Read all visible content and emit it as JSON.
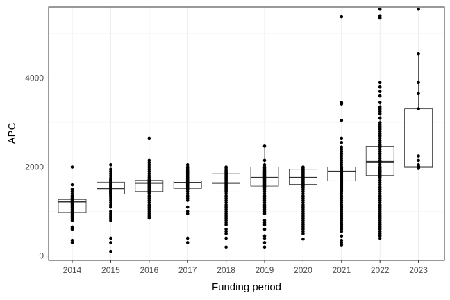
{
  "chart_data": {
    "type": "boxplot",
    "xlabel": "Funding period",
    "ylabel": "APC",
    "ylim": [
      -100,
      5600
    ],
    "yticks": [
      0,
      2000,
      4000
    ],
    "ytick_labels": [
      "0",
      "2000",
      "4000"
    ],
    "grid": true,
    "theme": "bw",
    "categories": [
      "2014",
      "2015",
      "2016",
      "2017",
      "2018",
      "2019",
      "2020",
      "2021",
      "2022",
      "2023"
    ],
    "boxes": [
      {
        "q1": 980,
        "median": 1220,
        "q3": 1270,
        "whisker_low": 980,
        "whisker_high": 1300
      },
      {
        "q1": 1390,
        "median": 1520,
        "q3": 1660,
        "whisker_low": 1100,
        "whisker_high": 1950
      },
      {
        "q1": 1450,
        "median": 1640,
        "q3": 1700,
        "whisker_low": 1200,
        "whisker_high": 1950
      },
      {
        "q1": 1520,
        "median": 1650,
        "q3": 1690,
        "whisker_low": 1280,
        "whisker_high": 1950
      },
      {
        "q1": 1440,
        "median": 1640,
        "q3": 1850,
        "whisker_low": 850,
        "whisker_high": 2000
      },
      {
        "q1": 1570,
        "median": 1760,
        "q3": 2000,
        "whisker_low": 950,
        "whisker_high": 2470
      },
      {
        "q1": 1610,
        "median": 1760,
        "q3": 1950,
        "whisker_low": 1100,
        "whisker_high": 2000
      },
      {
        "q1": 1690,
        "median": 1900,
        "q3": 2000,
        "whisker_low": 1100,
        "whisker_high": 2400
      },
      {
        "q1": 1810,
        "median": 2120,
        "q3": 2470,
        "whisker_low": 850,
        "whisker_high": 3450
      },
      {
        "q1": 1990,
        "median": 2000,
        "q3": 3310,
        "whisker_low": 1970,
        "whisker_high": 4550
      }
    ],
    "points": [
      [
        2000,
        1600,
        1500,
        1450,
        1400,
        1350,
        1300,
        1280,
        1250,
        1230,
        1220,
        1210,
        1200,
        1180,
        1150,
        1100,
        1050,
        1000,
        950,
        900,
        850,
        800,
        650,
        600,
        350,
        300
      ],
      [
        2050,
        1950,
        1900,
        1850,
        1800,
        1750,
        1720,
        1700,
        1680,
        1650,
        1620,
        1600,
        1580,
        1560,
        1540,
        1520,
        1500,
        1480,
        1460,
        1440,
        1420,
        1400,
        1380,
        1350,
        1300,
        1250,
        1200,
        1150,
        1100,
        1000,
        950,
        900,
        850,
        800,
        400,
        300,
        100
      ],
      [
        2650,
        2150,
        2100,
        2050,
        2000,
        1950,
        1900,
        1850,
        1800,
        1760,
        1720,
        1700,
        1680,
        1660,
        1640,
        1620,
        1600,
        1580,
        1560,
        1540,
        1520,
        1500,
        1480,
        1460,
        1440,
        1420,
        1400,
        1350,
        1300,
        1250,
        1200,
        1150,
        1100,
        1050,
        1000,
        950,
        900,
        850
      ],
      [
        2050,
        2000,
        1980,
        1950,
        1920,
        1900,
        1880,
        1860,
        1840,
        1820,
        1800,
        1780,
        1760,
        1740,
        1720,
        1700,
        1690,
        1680,
        1670,
        1660,
        1650,
        1640,
        1630,
        1620,
        1610,
        1600,
        1580,
        1560,
        1540,
        1520,
        1500,
        1450,
        1400,
        1350,
        1300,
        1250,
        1100,
        1000,
        950,
        400,
        300
      ],
      [
        2000,
        1980,
        1950,
        1920,
        1900,
        1880,
        1860,
        1840,
        1820,
        1800,
        1780,
        1760,
        1740,
        1720,
        1700,
        1680,
        1660,
        1640,
        1620,
        1600,
        1580,
        1560,
        1540,
        1520,
        1500,
        1480,
        1460,
        1440,
        1400,
        1350,
        1300,
        1250,
        1200,
        1150,
        1100,
        1050,
        1000,
        950,
        900,
        850,
        800,
        750,
        700,
        600,
        550,
        500,
        400,
        200
      ],
      [
        2470,
        2150,
        2050,
        2000,
        1980,
        1950,
        1920,
        1900,
        1880,
        1860,
        1840,
        1820,
        1800,
        1780,
        1760,
        1740,
        1720,
        1700,
        1680,
        1660,
        1640,
        1620,
        1600,
        1580,
        1560,
        1540,
        1500,
        1450,
        1400,
        1350,
        1300,
        1250,
        1200,
        1150,
        1100,
        1050,
        1000,
        950,
        800,
        750,
        700,
        600,
        450,
        400,
        300,
        200
      ],
      [
        2000,
        1980,
        1960,
        1940,
        1920,
        1900,
        1880,
        1860,
        1840,
        1820,
        1800,
        1780,
        1760,
        1740,
        1720,
        1700,
        1680,
        1660,
        1640,
        1620,
        1600,
        1580,
        1560,
        1540,
        1500,
        1450,
        1400,
        1350,
        1300,
        1250,
        1200,
        1150,
        1100,
        1050,
        1000,
        950,
        900,
        850,
        800,
        750,
        700,
        650,
        600,
        550,
        500,
        380
      ],
      [
        5380,
        3450,
        3420,
        3050,
        2650,
        2550,
        2450,
        2400,
        2350,
        2300,
        2250,
        2200,
        2150,
        2100,
        2050,
        2000,
        1980,
        1960,
        1940,
        1920,
        1900,
        1880,
        1860,
        1840,
        1820,
        1800,
        1780,
        1760,
        1740,
        1720,
        1700,
        1680,
        1660,
        1640,
        1620,
        1600,
        1580,
        1560,
        1540,
        1520,
        1500,
        1480,
        1460,
        1440,
        1400,
        1350,
        1300,
        1250,
        1200,
        1150,
        1100,
        1050,
        1000,
        950,
        900,
        850,
        800,
        750,
        700,
        650,
        600,
        550,
        450,
        350,
        300,
        250
      ],
      [
        5550,
        5400,
        5350,
        3900,
        3800,
        3700,
        3600,
        3450,
        3350,
        3300,
        3250,
        3200,
        3100,
        3000,
        2950,
        2900,
        2850,
        2800,
        2750,
        2700,
        2650,
        2600,
        2550,
        2500,
        2470,
        2450,
        2400,
        2350,
        2300,
        2250,
        2200,
        2150,
        2120,
        2100,
        2050,
        2000,
        1980,
        1950,
        1920,
        1900,
        1880,
        1850,
        1820,
        1800,
        1780,
        1750,
        1700,
        1650,
        1600,
        1550,
        1500,
        1450,
        1400,
        1350,
        1300,
        1250,
        1200,
        1150,
        1100,
        1050,
        1000,
        950,
        900,
        850,
        800,
        750,
        700,
        650,
        600,
        550,
        500,
        450,
        400
      ],
      [
        5550,
        4550,
        3900,
        3650,
        3310,
        2250,
        2150,
        2050,
        2020,
        2000,
        2000,
        1990,
        1980,
        1970
      ]
    ]
  }
}
